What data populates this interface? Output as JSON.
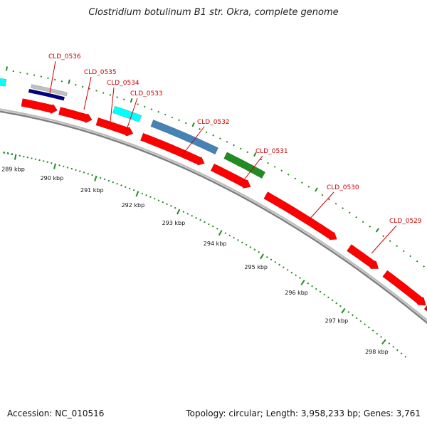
{
  "title": "Clostridium botulinum B1 str. Okra, complete genome",
  "accession": "Accession: NC_010516",
  "summary": "Topology: circular; Length: 3,958,233 bp; Genes: 3,761",
  "scale_labels": [
    "289 kbp",
    "290 kbp",
    "291 kbp",
    "292 kbp",
    "293 kbp",
    "294 kbp",
    "295 kbp",
    "296 kbp",
    "297 kbp",
    "298 kbp"
  ],
  "gene_labels": [
    "CLD_0536",
    "CLD_0535",
    "CLD_0534",
    "CLD_0533",
    "CLD_0532",
    "CLD_0531",
    "CLD_0530",
    "CLD_0529"
  ],
  "colors": {
    "cds": "#ff0000",
    "label": "#cc0000",
    "cyan_feature": "#00ffff",
    "blue_feature": "#4682b4",
    "green_feature": "#228b22",
    "navy_feature": "#000080",
    "gray_feature": "#c0c0c0",
    "backbone": "#888888",
    "tick": "#228b22"
  }
}
